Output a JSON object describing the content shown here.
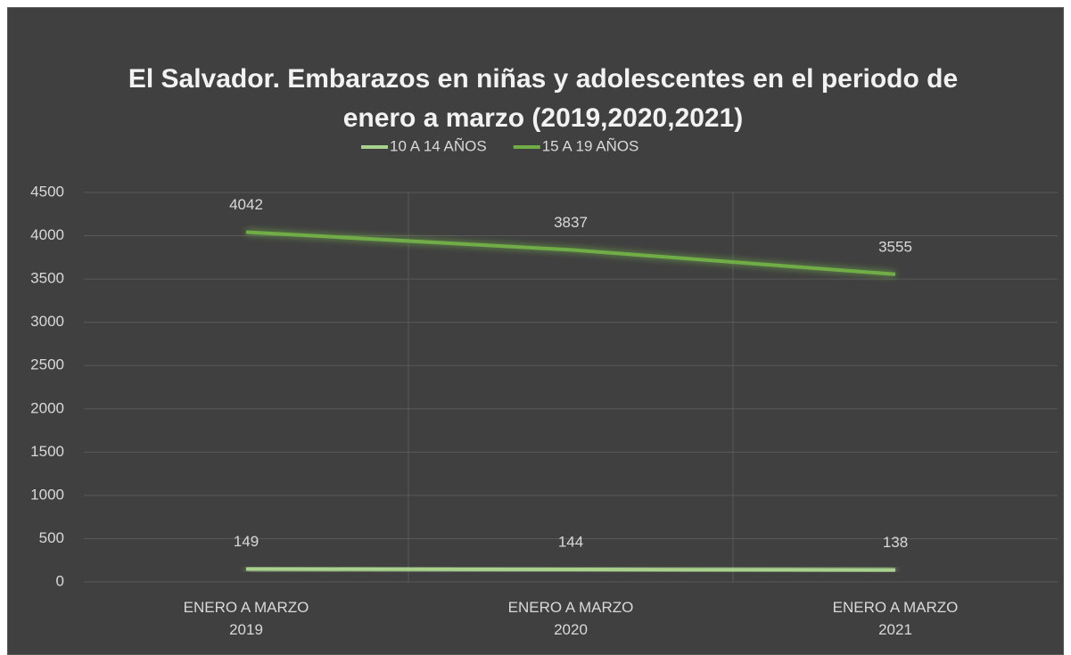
{
  "chart_data": {
    "type": "line",
    "title": "El Salvador. Embarazos en niñas y adolescentes en el periodo de enero a marzo (2019,2020,2021)",
    "categories": [
      "ENERO A MARZO 2019",
      "ENERO A MARZO 2020",
      "ENERO A MARZO 2021"
    ],
    "series": [
      {
        "name": "10 A 14 AÑOS",
        "color": "#a9d18e",
        "values": [
          149,
          144,
          138
        ]
      },
      {
        "name": "15 A 19 AÑOS",
        "color": "#70ad47",
        "values": [
          4042,
          3837,
          3555
        ]
      }
    ],
    "ylim": [
      0,
      4500
    ],
    "yticks": [
      0,
      500,
      1000,
      1500,
      2000,
      2500,
      3000,
      3500,
      4000,
      4500
    ],
    "grid": true,
    "legend": "top"
  }
}
